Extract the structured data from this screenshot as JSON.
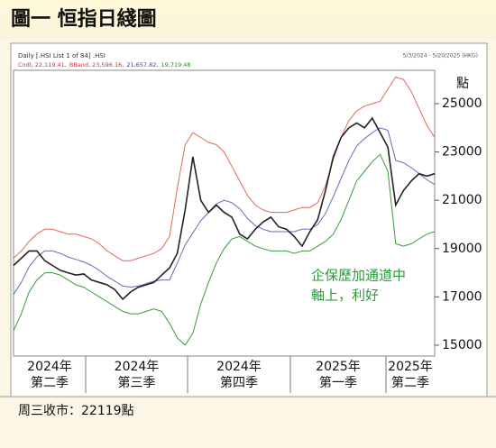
{
  "chart_data": {
    "type": "line",
    "title": "圖一 恒指日綫圖",
    "header_left": "Daily [.HSI List 1 of 84] .HSI",
    "header_right": "5/3/2024 - 5/20/2025 (HKG)",
    "legend_parts": [
      {
        "text": "Cndl, 22,119.41,",
        "color": "#d03030"
      },
      {
        "text": "BBand, 23,596.16,",
        "color": "#d03030"
      },
      {
        "text": "21,657.82,",
        "color": "#3a3aa8"
      },
      {
        "text": "19,719.48",
        "color": "#2a8a2a"
      }
    ],
    "y_unit": "點",
    "annotation": [
      "企保歷加通道中",
      "軸上，利好"
    ],
    "annotation_color": "#2a9a3a",
    "footer": "周三收市：22119點",
    "quarters": [
      {
        "year": "2024年",
        "quarter": "第二季"
      },
      {
        "year": "2024年",
        "quarter": "第三季"
      },
      {
        "year": "2024年",
        "quarter": "第四季"
      },
      {
        "year": "2025年",
        "quarter": "第一季"
      },
      {
        "year": "2025年",
        "quarter": "第二季"
      }
    ],
    "ylim": [
      14550,
      26380
    ],
    "yticks": [
      15000,
      17000,
      19000,
      21000,
      23000,
      25000
    ],
    "series": [
      {
        "color": "#e06a5a",
        "values": [
          18600,
          18900,
          19300,
          19600,
          19800,
          19800,
          19700,
          19600,
          19600,
          19500,
          19400,
          19200,
          18900,
          18700,
          18500,
          18500,
          18600,
          18700,
          18800,
          19000,
          19500,
          21500,
          23300,
          23800,
          23600,
          23400,
          23300,
          23000,
          22400,
          21800,
          21200,
          20800,
          20600,
          20500,
          20500,
          20500,
          20600,
          20700,
          20700,
          20900,
          21600,
          22700,
          23600,
          24300,
          24700,
          24900,
          25000,
          25100,
          25600,
          26100,
          26000,
          25500,
          24800,
          24100,
          23600
        ]
      },
      {
        "color": "#6a6ab8",
        "values": [
          17100,
          17600,
          18250,
          18650,
          18900,
          18900,
          18800,
          18650,
          18550,
          18450,
          18300,
          18100,
          17850,
          17650,
          17450,
          17400,
          17450,
          17550,
          17650,
          17700,
          17700,
          18400,
          19150,
          19650,
          20150,
          20500,
          20850,
          21000,
          20900,
          20650,
          20250,
          19950,
          19800,
          19700,
          19700,
          19700,
          19700,
          19800,
          19800,
          20000,
          20450,
          21150,
          21900,
          22650,
          23250,
          23550,
          23800,
          24000,
          23900,
          22650,
          22550,
          22350,
          22100,
          21850,
          21650
        ]
      },
      {
        "color": "#3a9a3a",
        "values": [
          15600,
          16300,
          17200,
          17700,
          18000,
          18000,
          17900,
          17700,
          17500,
          17400,
          17200,
          17000,
          16800,
          16600,
          16400,
          16300,
          16300,
          16400,
          16500,
          16400,
          15900,
          15300,
          15000,
          15500,
          16700,
          17600,
          18400,
          19000,
          19400,
          19500,
          19300,
          19100,
          19000,
          18900,
          18900,
          18900,
          18800,
          18900,
          18900,
          19100,
          19300,
          19600,
          20200,
          21000,
          21800,
          22200,
          22600,
          22900,
          22200,
          19200,
          19100,
          19200,
          19400,
          19600,
          19700
        ]
      },
      {
        "color": "#222222",
        "values": [
          18300,
          18600,
          18900,
          18900,
          18500,
          18300,
          18100,
          18000,
          17900,
          17950,
          17700,
          17600,
          17500,
          17300,
          16900,
          17200,
          17400,
          17500,
          17600,
          17900,
          18200,
          18800,
          20600,
          22800,
          21000,
          20500,
          20800,
          20500,
          20300,
          19600,
          19400,
          19800,
          20100,
          20300,
          19900,
          19800,
          19500,
          19100,
          19700,
          20200,
          21400,
          22800,
          23600,
          24000,
          24200,
          24000,
          24400,
          23800,
          23200,
          20800,
          21400,
          21800,
          22100,
          22000,
          22100
        ]
      }
    ]
  }
}
